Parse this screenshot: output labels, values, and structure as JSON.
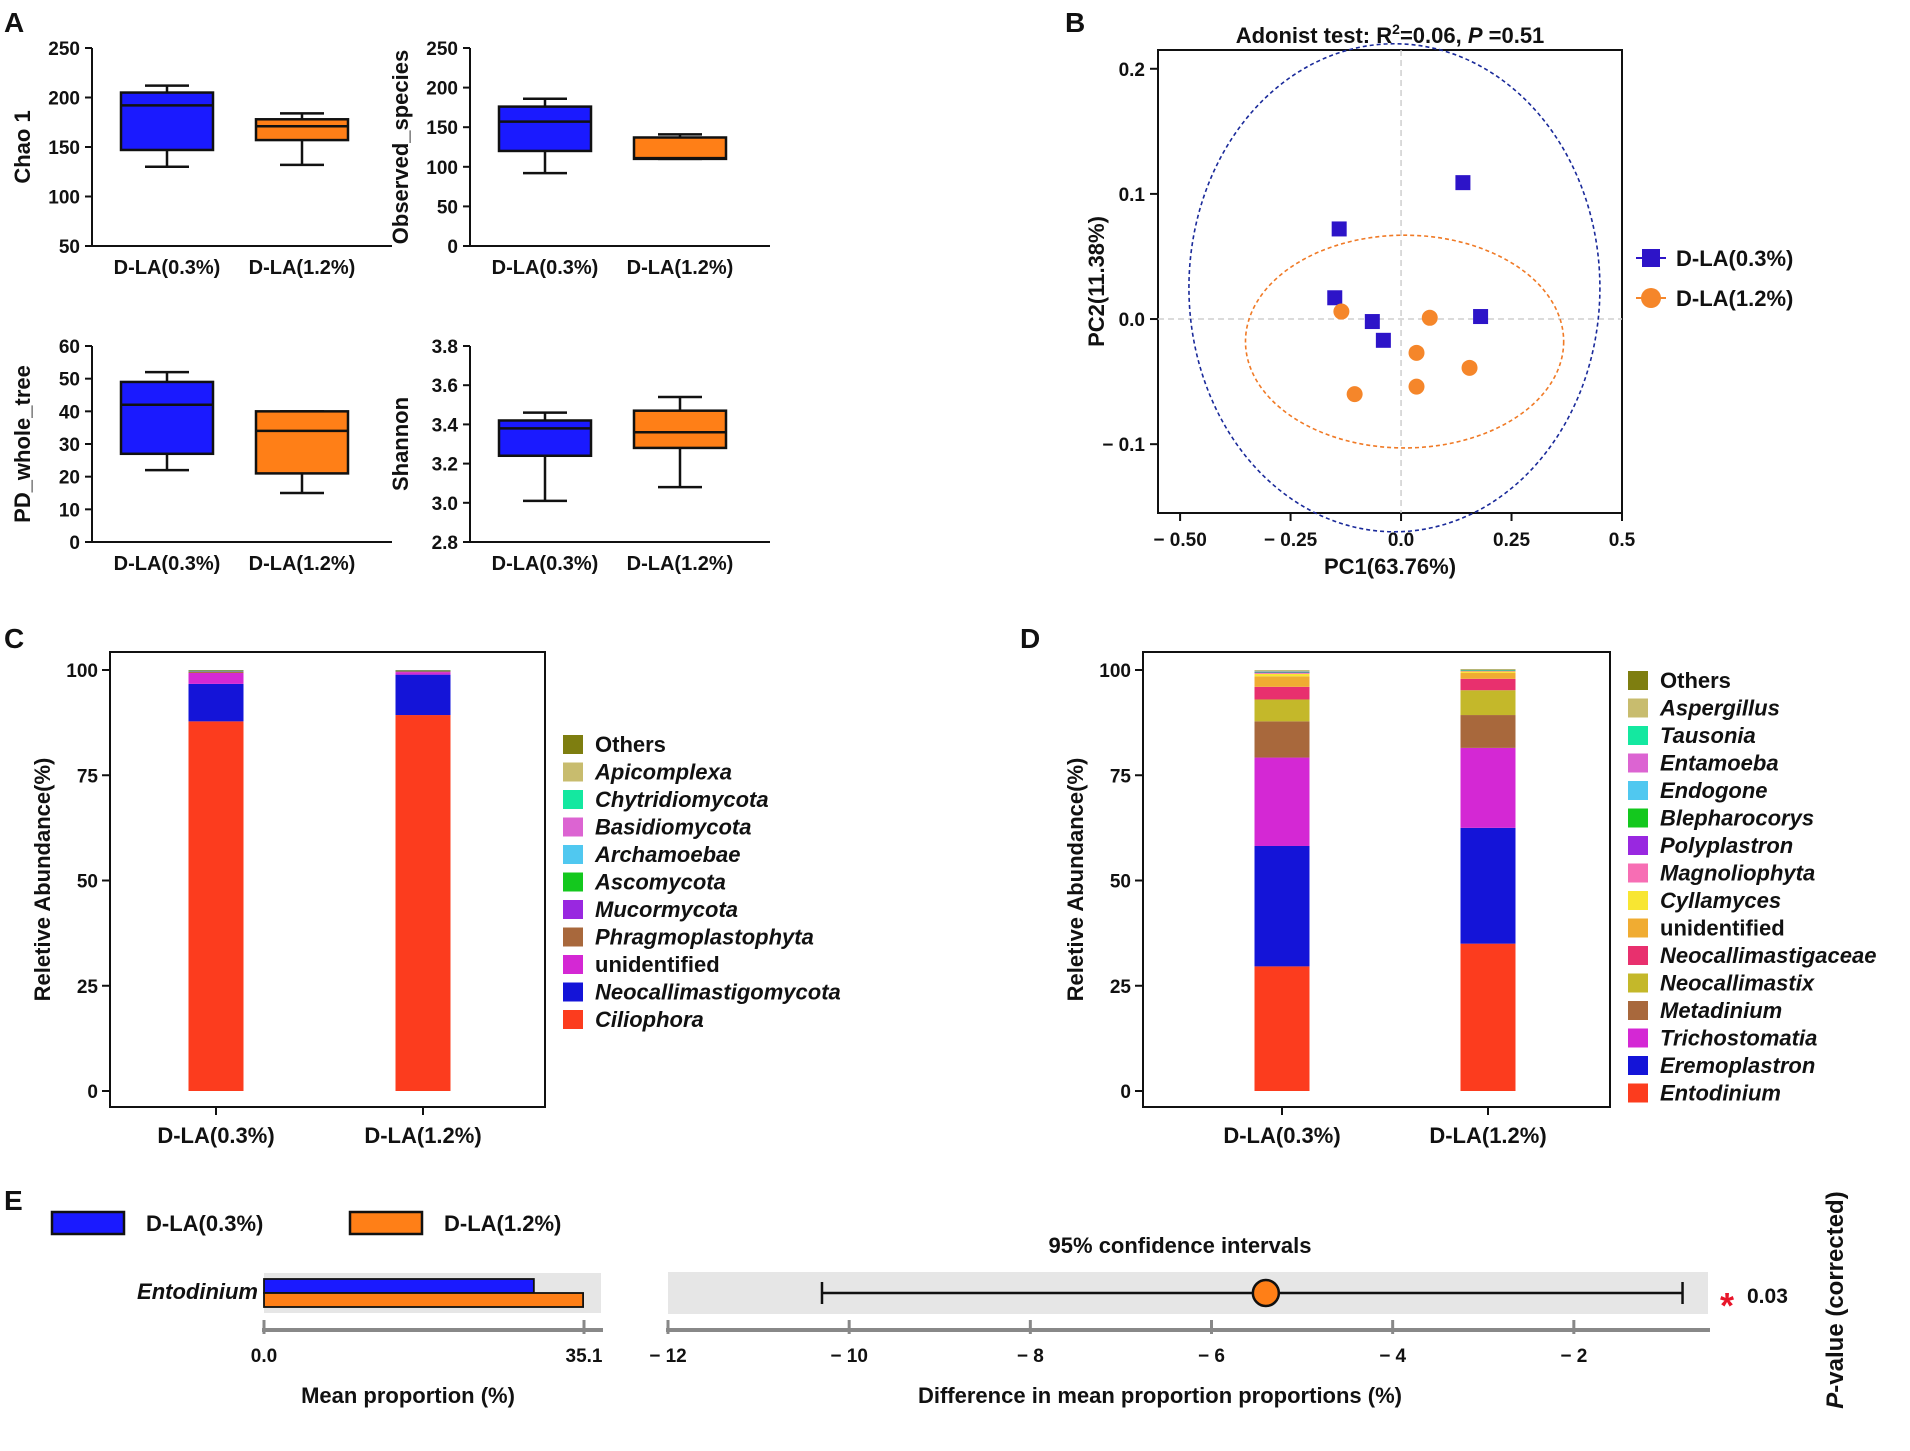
{
  "panel_labels": {
    "a": "A",
    "b": "B",
    "c": "C",
    "d": "D",
    "e": "E"
  },
  "colors": {
    "blue": "#1a1aff",
    "orange": "#ff7f17",
    "pcoa_blue": "#2d14c8",
    "pcoa_orange": "#f5862a",
    "band": "#e6e6e6",
    "star": "#e8152a",
    "ellipse_blue": "#1a2a9a",
    "ellipse_orange": "#f07a26"
  },
  "chart_data": [
    {
      "id": "A1",
      "type": "boxplot",
      "ylabel": "Chao 1",
      "ylim": [
        50,
        250
      ],
      "yticks": [
        50,
        100,
        150,
        200,
        250
      ],
      "categories": [
        "D-LA(0.3%)",
        "D-LA(1.2%)"
      ],
      "boxes": [
        {
          "min": 130,
          "q1": 147,
          "median": 192,
          "q3": 205,
          "max": 212
        },
        {
          "min": 132,
          "q1": 157,
          "median": 171,
          "q3": 178,
          "max": 184
        }
      ]
    },
    {
      "id": "A2",
      "type": "boxplot",
      "ylabel": "Observed_species",
      "ylim": [
        0,
        250
      ],
      "yticks": [
        0,
        50,
        100,
        150,
        200,
        250
      ],
      "categories": [
        "D-LA(0.3%)",
        "D-LA(1.2%)"
      ],
      "boxes": [
        {
          "min": 92,
          "q1": 120,
          "median": 157,
          "q3": 176,
          "max": 186
        },
        {
          "min": 110,
          "q1": 110,
          "median": 111,
          "q3": 137,
          "max": 141
        }
      ]
    },
    {
      "id": "A3",
      "type": "boxplot",
      "ylabel": "PD_whole_tree",
      "ylim": [
        0,
        60
      ],
      "yticks": [
        0,
        10,
        20,
        30,
        40,
        50,
        60
      ],
      "categories": [
        "D-LA(0.3%)",
        "D-LA(1.2%)"
      ],
      "boxes": [
        {
          "min": 22,
          "q1": 27,
          "median": 42,
          "q3": 49,
          "max": 52
        },
        {
          "min": 15,
          "q1": 21,
          "median": 34,
          "q3": 40,
          "max": 40
        }
      ]
    },
    {
      "id": "A4",
      "type": "boxplot",
      "ylabel": "Shannon",
      "ylim": [
        2.8,
        3.8
      ],
      "yticks": [
        "2.8",
        "3.0",
        "3.2",
        "3.4",
        "3.6",
        "3.8"
      ],
      "categories": [
        "D-LA(0.3%)",
        "D-LA(1.2%)"
      ],
      "boxes": [
        {
          "min": 3.01,
          "q1": 3.24,
          "median": 3.38,
          "q3": 3.42,
          "max": 3.46
        },
        {
          "min": 3.08,
          "q1": 3.28,
          "median": 3.36,
          "q3": 3.47,
          "max": 3.54
        }
      ]
    },
    {
      "id": "B",
      "type": "scatter",
      "title_prefix": "Adonist test: R",
      "title_sup": "2",
      "title_mid": "=0.06, ",
      "title_p": "P",
      "title_suffix": " =0.51",
      "xlabel": "PC1(63.76%)",
      "ylabel": "PC2(11.38%)",
      "xlim": [
        -0.55,
        0.5
      ],
      "ylim": [
        -0.155,
        0.215
      ],
      "xticks": [
        -0.5,
        -0.25,
        0,
        0.25,
        0.5
      ],
      "xtick_labels": [
        "− 0.50",
        "− 0.25",
        "0.0",
        "0.25",
        "0.5"
      ],
      "yticks": [
        -0.1,
        0,
        0.1,
        0.2
      ],
      "ytick_labels": [
        "− 0.1",
        "0.0",
        "0.1",
        "0.2"
      ],
      "series": [
        {
          "name": "D-LA(0.3%)",
          "marker": "square",
          "points": [
            [
              -0.14,
              0.072
            ],
            [
              0.14,
              0.109
            ],
            [
              -0.15,
              0.017
            ],
            [
              -0.065,
              -0.002
            ],
            [
              -0.04,
              -0.017
            ],
            [
              0.18,
              0.002
            ]
          ],
          "ellipse": {
            "cx": -0.015,
            "cy": 0.025,
            "rx": 0.465,
            "ry": 0.195
          }
        },
        {
          "name": "D-LA(1.2%)",
          "marker": "circle",
          "points": [
            [
              -0.135,
              0.006
            ],
            [
              0.065,
              0.001
            ],
            [
              0.035,
              -0.027
            ],
            [
              0.155,
              -0.039
            ],
            [
              -0.105,
              -0.06
            ],
            [
              0.035,
              -0.054
            ]
          ],
          "ellipse": {
            "cx": 0.008,
            "cy": -0.018,
            "rx": 0.36,
            "ry": 0.085
          }
        }
      ]
    },
    {
      "id": "C",
      "type": "stacked-bar",
      "ylabel": "Reletive Abundance(%)",
      "ylim": [
        0,
        100
      ],
      "yticks": [
        0,
        25,
        50,
        75,
        100
      ],
      "categories": [
        "D-LA(0.3%)",
        "D-LA(1.2%)"
      ],
      "series": [
        {
          "name": "Ciliophora",
          "color": "#fc3c1e",
          "italic": true,
          "values": [
            87.8,
            89.3
          ]
        },
        {
          "name": "Neocallimastigomycota",
          "color": "#1414d8",
          "italic": true,
          "values": [
            8.9,
            9.6
          ]
        },
        {
          "name": "unidentified",
          "color": "#d428d4",
          "italic": false,
          "values": [
            2.6,
            0.6
          ]
        },
        {
          "name": "Phragmoplastophyta",
          "color": "#a8683c",
          "italic": true,
          "values": [
            0.3,
            0.2
          ]
        },
        {
          "name": "Mucormycota",
          "color": "#9928e0",
          "italic": true,
          "values": [
            0.1,
            0.1
          ]
        },
        {
          "name": "Ascomycota",
          "color": "#14c81e",
          "italic": true,
          "values": [
            0.1,
            0.05
          ]
        },
        {
          "name": "Archamoebae",
          "color": "#50c8f0",
          "italic": true,
          "values": [
            0.05,
            0.05
          ]
        },
        {
          "name": "Basidiomycota",
          "color": "#dc64d2",
          "italic": true,
          "values": [
            0.05,
            0.03
          ]
        },
        {
          "name": "Chytridiomycota",
          "color": "#14e8a0",
          "italic": true,
          "values": [
            0.03,
            0.03
          ]
        },
        {
          "name": "Apicomplexa",
          "color": "#c8bc6e",
          "italic": true,
          "values": [
            0.03,
            0.02
          ]
        },
        {
          "name": "Others",
          "color": "#7e7e10",
          "italic": false,
          "values": [
            0.04,
            0.02
          ]
        }
      ]
    },
    {
      "id": "D",
      "type": "stacked-bar",
      "ylabel": "Reletive Abundance(%)",
      "ylim": [
        0,
        100
      ],
      "yticks": [
        0,
        25,
        50,
        75,
        100
      ],
      "categories": [
        "D-LA(0.3%)",
        "D-LA(1.2%)"
      ],
      "series": [
        {
          "name": "Entodinium",
          "color": "#fc3c1e",
          "italic": true,
          "values": [
            29.6,
            35.0
          ]
        },
        {
          "name": "Eremoplastron",
          "color": "#1414d8",
          "italic": true,
          "values": [
            28.6,
            27.5
          ]
        },
        {
          "name": "Trichostomatia",
          "color": "#d428d4",
          "italic": true,
          "values": [
            21.0,
            19.0
          ]
        },
        {
          "name": "Metadinium",
          "color": "#a8683c",
          "italic": true,
          "values": [
            8.6,
            7.8
          ]
        },
        {
          "name": "Neocallimastix",
          "color": "#c4b82a",
          "italic": true,
          "values": [
            5.2,
            5.9
          ]
        },
        {
          "name": "Neocallimastigaceae",
          "color": "#e8306e",
          "italic": true,
          "values": [
            3.0,
            2.7
          ]
        },
        {
          "name": "unidentified",
          "color": "#f0ac32",
          "italic": false,
          "values": [
            2.5,
            1.4
          ]
        },
        {
          "name": "Cyllamyces",
          "color": "#f8e632",
          "italic": true,
          "values": [
            0.6,
            0.4
          ]
        },
        {
          "name": "Magnoliophyta",
          "color": "#f76eb4",
          "italic": true,
          "values": [
            0.2,
            0.1
          ]
        },
        {
          "name": "Polyplastron",
          "color": "#9928e0",
          "italic": true,
          "values": [
            0.1,
            0.05
          ]
        },
        {
          "name": "Blepharocorys",
          "color": "#14c81e",
          "italic": true,
          "values": [
            0.1,
            0.05
          ]
        },
        {
          "name": "Endogone",
          "color": "#50c8f0",
          "italic": true,
          "values": [
            0.1,
            0.05
          ]
        },
        {
          "name": "Entamoeba",
          "color": "#dc64d2",
          "italic": true,
          "values": [
            0.1,
            0.05
          ]
        },
        {
          "name": "Tausonia",
          "color": "#14e8a0",
          "italic": true,
          "values": [
            0.05,
            0.05
          ]
        },
        {
          "name": "Aspergillus",
          "color": "#c8bc6e",
          "italic": true,
          "values": [
            0.05,
            0.05
          ]
        },
        {
          "name": "Others",
          "color": "#7e7e10",
          "italic": false,
          "values": [
            0.1,
            0.05
          ]
        }
      ]
    },
    {
      "id": "E",
      "type": "extended-error-bar",
      "legend": [
        "D-LA(0.3%)",
        "D-LA(1.2%)"
      ],
      "feature": "Entodinium",
      "mean_proportion": {
        "values": [
          29.6,
          35.0
        ],
        "xlim": [
          0,
          35.1
        ],
        "tick_labels": [
          "0.0",
          "35.1"
        ],
        "xlabel": "Mean proportion (%)"
      },
      "difference": {
        "title": "95% confidence intervals",
        "estimate": -5.4,
        "ci": [
          -10.3,
          -0.8
        ],
        "xlim": [
          -12,
          0
        ],
        "xticks": [
          -12,
          -10,
          -8,
          -6,
          -4,
          -2
        ],
        "xtick_labels": [
          "− 12",
          "− 10",
          "− 8",
          "− 6",
          "− 4",
          "− 2"
        ],
        "xlabel": "Difference in mean proportion proportions (%)"
      },
      "significance": "*",
      "p_value": "0.03",
      "p_label_italic": "P",
      "p_label_rest": "-value (corrected)"
    }
  ]
}
